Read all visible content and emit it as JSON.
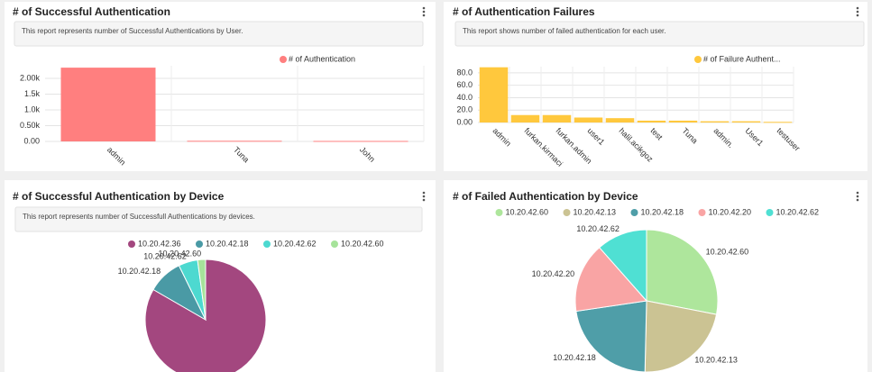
{
  "chart_data": [
    {
      "type": "bar",
      "title": "# of Successful Authentication",
      "description": "This report represents number of Successful Authentications by User.",
      "categories": [
        "admin",
        "Tuna",
        "John"
      ],
      "series": [
        {
          "name": "# of Authentication",
          "color": "#ff7f7f",
          "values": [
            2340,
            20,
            15
          ]
        }
      ],
      "ylim": [
        0,
        2400
      ],
      "yticks": [
        {
          "value": 0,
          "label": "0.00"
        },
        {
          "value": 500,
          "label": "0.50k"
        },
        {
          "value": 1000,
          "label": "1.0k"
        },
        {
          "value": 1500,
          "label": "1.5k"
        },
        {
          "value": 2000,
          "label": "2.00k"
        }
      ],
      "grid": true
    },
    {
      "type": "bar",
      "title": "# of Authentication Failures",
      "description": "This report shows number of failed authentication for each user.",
      "categories": [
        "admin",
        "furkan.kirmaci",
        "furkan.admin",
        "user1",
        "halil.acikgoz",
        "test",
        "Tuna",
        "admin.",
        "User1",
        "testuser"
      ],
      "series": [
        {
          "name": "# of Failure Authent...",
          "color": "#ffc83d",
          "values": [
            89,
            12,
            12,
            8,
            7,
            3,
            3,
            2,
            2,
            1
          ]
        }
      ],
      "ylim": [
        0,
        90
      ],
      "yticks": [
        {
          "value": 0,
          "label": "0.00"
        },
        {
          "value": 20,
          "label": "20.0"
        },
        {
          "value": 40,
          "label": "40.0"
        },
        {
          "value": 60,
          "label": "60.0"
        },
        {
          "value": 80,
          "label": "80.0"
        }
      ],
      "grid": true
    },
    {
      "type": "pie",
      "title": "# of Successful Authentication by Device",
      "description": "This report represents number of Successfull Authentications by devices.",
      "categories": [
        "10.20.42.36",
        "10.20.42.18",
        "10.20.42.62",
        "10.20.42.60"
      ],
      "values": [
        1950,
        220,
        120,
        50
      ],
      "colors": [
        "#a3477f",
        "#4a9aa5",
        "#4dd9d0",
        "#a6e39a"
      ]
    },
    {
      "type": "pie",
      "title": "# of Failed Authentication by Device",
      "categories": [
        "10.20.42.60",
        "10.20.42.13",
        "10.20.42.18",
        "10.20.42.20",
        "10.20.42.62"
      ],
      "values": [
        39,
        31,
        31,
        22,
        16
      ],
      "colors": [
        "#aee69c",
        "#cbc393",
        "#4f9ea8",
        "#f9a4a4",
        "#4fe0d3"
      ]
    }
  ]
}
